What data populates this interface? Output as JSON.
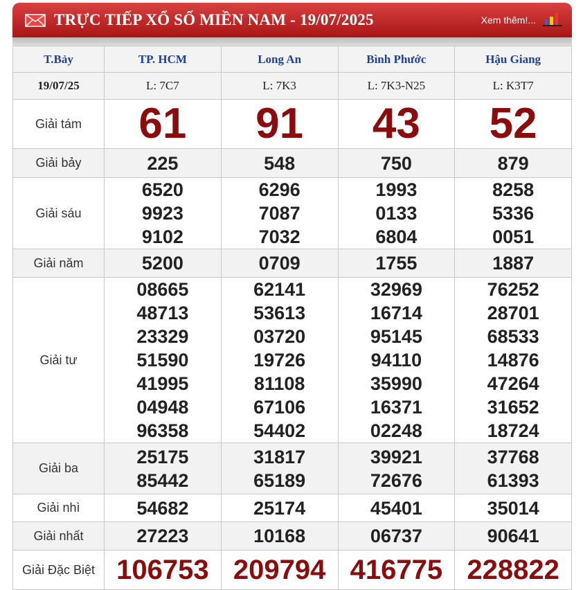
{
  "header": {
    "title": "TRỰC TIẾP XỔ SỐ MIỀN NAM - 19/07/2025",
    "more_link": "Xem thêm!...",
    "icons": [
      "envelope-icon",
      "bar-chart-icon"
    ]
  },
  "columns": {
    "day": "T.Bảy",
    "provinces": [
      "TP. HCM",
      "Long An",
      "Bình Phước",
      "Hậu Giang"
    ]
  },
  "date_row": {
    "date": "19/07/25",
    "codes": [
      "L: 7C7",
      "L: 7K3",
      "L: 7K3-N25",
      "L: K3T7"
    ]
  },
  "prizes": [
    {
      "label": "Giải tám",
      "values": [
        [
          "61"
        ],
        [
          "91"
        ],
        [
          "43"
        ],
        [
          "52"
        ]
      ]
    },
    {
      "label": "Giải bảy",
      "values": [
        [
          "225"
        ],
        [
          "548"
        ],
        [
          "750"
        ],
        [
          "879"
        ]
      ]
    },
    {
      "label": "Giải sáu",
      "values": [
        [
          "6520",
          "9923",
          "9102"
        ],
        [
          "6296",
          "7087",
          "7032"
        ],
        [
          "1993",
          "0133",
          "6804"
        ],
        [
          "8258",
          "5336",
          "0051"
        ]
      ]
    },
    {
      "label": "Giải năm",
      "values": [
        [
          "5200"
        ],
        [
          "0709"
        ],
        [
          "1755"
        ],
        [
          "1887"
        ]
      ]
    },
    {
      "label": "Giải tư",
      "values": [
        [
          "08665",
          "48713",
          "23329",
          "51590",
          "41995",
          "04948",
          "96358"
        ],
        [
          "62141",
          "53613",
          "03720",
          "19726",
          "81108",
          "67106",
          "54402"
        ],
        [
          "32969",
          "16714",
          "95145",
          "94110",
          "35990",
          "16371",
          "02248"
        ],
        [
          "76252",
          "28701",
          "68533",
          "14876",
          "47264",
          "31652",
          "18724"
        ]
      ]
    },
    {
      "label": "Giải ba",
      "values": [
        [
          "25175",
          "85442"
        ],
        [
          "31817",
          "65189"
        ],
        [
          "39921",
          "72676"
        ],
        [
          "37768",
          "61393"
        ]
      ]
    },
    {
      "label": "Giải nhì",
      "values": [
        [
          "54682"
        ],
        [
          "25174"
        ],
        [
          "45401"
        ],
        [
          "35014"
        ]
      ]
    },
    {
      "label": "Giải nhất",
      "values": [
        [
          "27223"
        ],
        [
          "10168"
        ],
        [
          "06737"
        ],
        [
          "90641"
        ]
      ]
    },
    {
      "label": "Giải Đặc Biệt",
      "values": [
        [
          "106753"
        ],
        [
          "209794"
        ],
        [
          "416775"
        ],
        [
          "228822"
        ]
      ]
    }
  ],
  "colors": {
    "header_red": "#b71c1c",
    "prize_red": "#8b0c0c",
    "province_blue": "#1f3f9a"
  }
}
